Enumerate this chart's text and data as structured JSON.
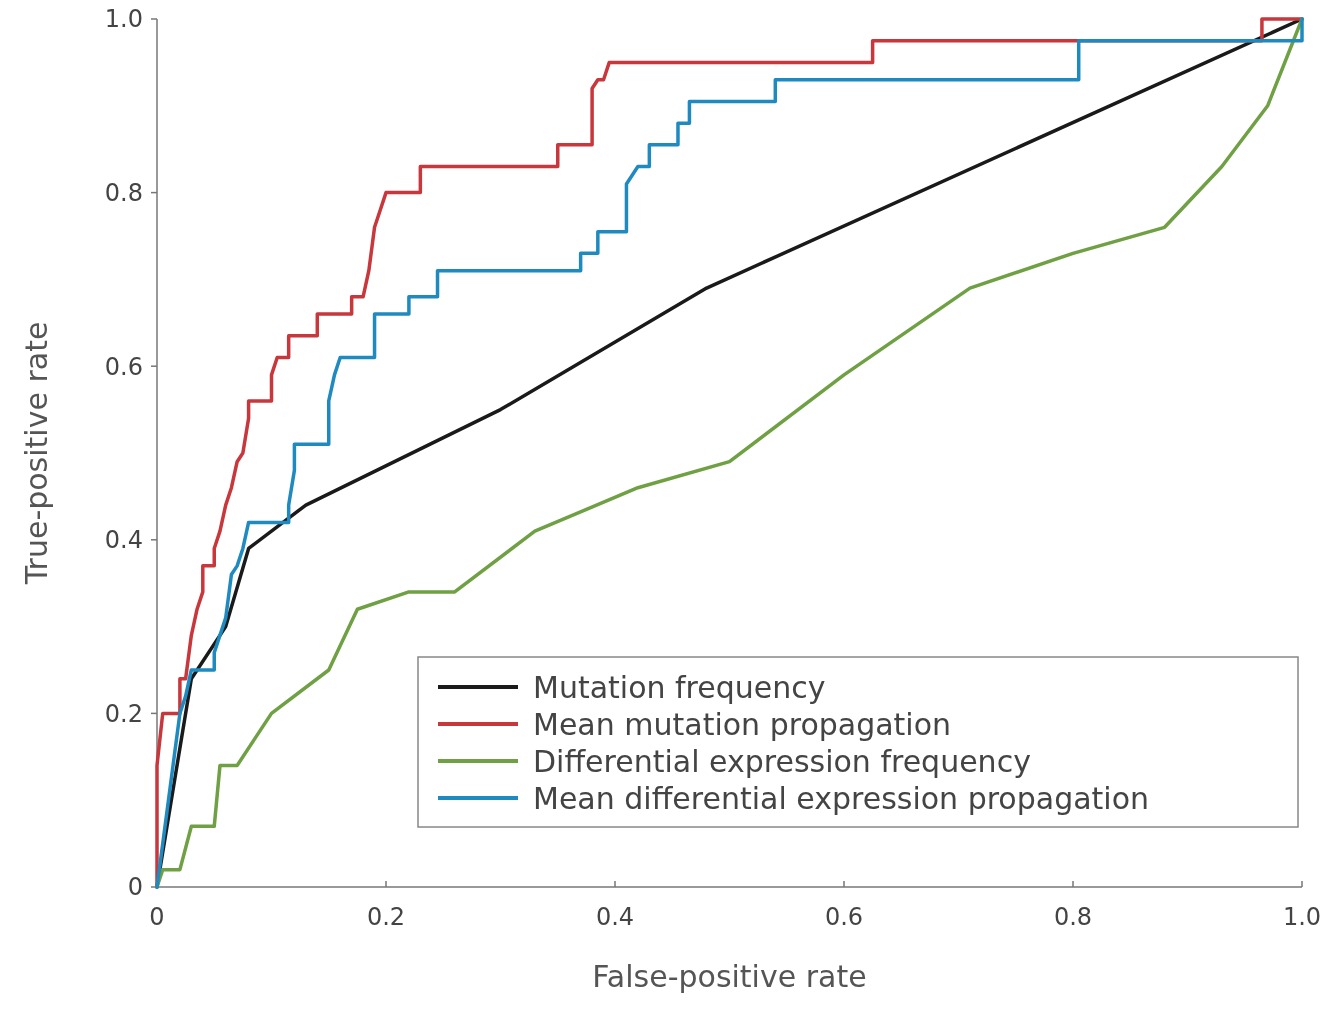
{
  "chart_data": {
    "type": "line",
    "xlabel": "False-positive rate",
    "ylabel": "True-positive rate",
    "xlim": [
      0,
      1
    ],
    "ylim": [
      0,
      1
    ],
    "xticks": [
      0,
      0.2,
      0.4,
      0.6,
      0.8,
      {
        "value": 1,
        "label": "1.0"
      }
    ],
    "yticks": [
      0,
      0.2,
      0.4,
      0.6,
      0.8,
      {
        "value": 1,
        "label": "1.0"
      }
    ],
    "legend": "bottom right",
    "grid": false,
    "marker": "none",
    "line_style": "solid",
    "series": [
      {
        "name": "Mutation frequency",
        "color": "#1a1a1a",
        "x": [
          0,
          0.03,
          0.06,
          0.08,
          0.13,
          0.3,
          0.48,
          1
        ],
        "values": [
          0,
          0.24,
          0.3,
          0.39,
          0.44,
          0.55,
          0.69,
          1
        ]
      },
      {
        "name": "Mean mutation propagation",
        "color": "#c8373b",
        "x": [
          0,
          0,
          0.005,
          0.02,
          0.02,
          0.025,
          0.03,
          0.035,
          0.04,
          0.04,
          0.05,
          0.05,
          0.055,
          0.06,
          0.065,
          0.07,
          0.075,
          0.08,
          0.08,
          0.1,
          0.1,
          0.105,
          0.115,
          0.115,
          0.14,
          0.14,
          0.17,
          0.17,
          0.18,
          0.185,
          0.19,
          0.195,
          0.2,
          0.23,
          0.23,
          0.35,
          0.35,
          0.38,
          0.38,
          0.385,
          0.39,
          0.395,
          0.625,
          0.625,
          0.965,
          0.965,
          1
        ],
        "values": [
          0,
          0.14,
          0.2,
          0.2,
          0.24,
          0.24,
          0.29,
          0.32,
          0.34,
          0.37,
          0.37,
          0.39,
          0.41,
          0.44,
          0.46,
          0.49,
          0.5,
          0.54,
          0.56,
          0.56,
          0.59,
          0.61,
          0.61,
          0.635,
          0.635,
          0.66,
          0.66,
          0.68,
          0.68,
          0.71,
          0.76,
          0.78,
          0.8,
          0.8,
          0.83,
          0.83,
          0.855,
          0.855,
          0.92,
          0.93,
          0.93,
          0.95,
          0.95,
          0.975,
          0.975,
          1,
          1
        ]
      },
      {
        "name": "Differential expression frequency",
        "color": "#6fa043",
        "x": [
          0,
          0.005,
          0.02,
          0.03,
          0.05,
          0.055,
          0.07,
          0.1,
          0.15,
          0.175,
          0.22,
          0.26,
          0.33,
          0.42,
          0.5,
          0.6,
          0.71,
          0.8,
          0.88,
          0.93,
          0.97,
          1
        ],
        "values": [
          0,
          0.02,
          0.02,
          0.07,
          0.07,
          0.14,
          0.14,
          0.2,
          0.25,
          0.32,
          0.34,
          0.34,
          0.41,
          0.46,
          0.49,
          0.59,
          0.69,
          0.73,
          0.76,
          0.83,
          0.9,
          1
        ]
      },
      {
        "name": "Mean differential expression propagation",
        "color": "#1f8ac0",
        "x": [
          0,
          0.01,
          0.015,
          0.02,
          0.025,
          0.03,
          0.05,
          0.05,
          0.06,
          0.065,
          0.07,
          0.075,
          0.08,
          0.115,
          0.115,
          0.12,
          0.12,
          0.15,
          0.15,
          0.155,
          0.16,
          0.19,
          0.19,
          0.22,
          0.22,
          0.245,
          0.245,
          0.37,
          0.37,
          0.385,
          0.385,
          0.41,
          0.41,
          0.42,
          0.43,
          0.43,
          0.455,
          0.455,
          0.465,
          0.465,
          0.54,
          0.54,
          0.805,
          0.805,
          1,
          1
        ],
        "values": [
          0,
          0.1,
          0.15,
          0.2,
          0.22,
          0.25,
          0.25,
          0.27,
          0.31,
          0.36,
          0.37,
          0.39,
          0.42,
          0.42,
          0.44,
          0.48,
          0.51,
          0.51,
          0.56,
          0.59,
          0.61,
          0.61,
          0.66,
          0.66,
          0.68,
          0.68,
          0.71,
          0.71,
          0.73,
          0.73,
          0.755,
          0.755,
          0.81,
          0.83,
          0.83,
          0.855,
          0.855,
          0.88,
          0.88,
          0.905,
          0.905,
          0.93,
          0.93,
          0.975,
          0.975,
          1
        ]
      }
    ]
  }
}
